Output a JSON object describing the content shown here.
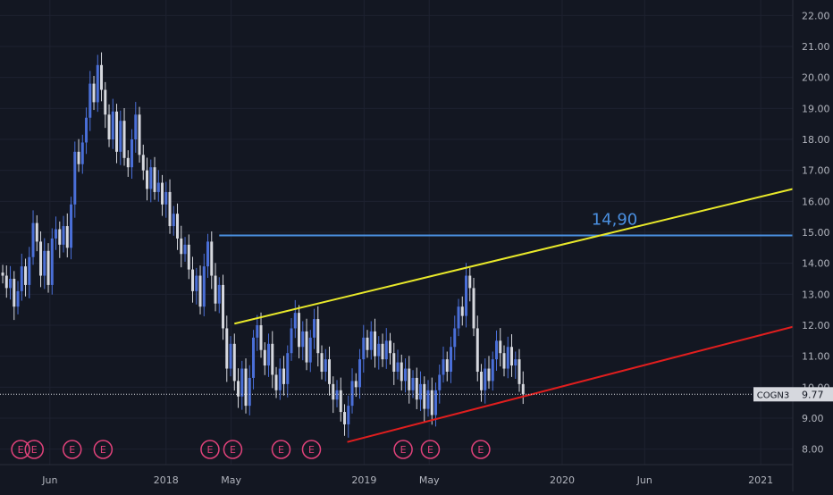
{
  "chart_data": {
    "type": "candlestick",
    "symbol": "COGN3",
    "last_price": "9.77",
    "price_label": "14,90",
    "y_ticks": [
      "22.00",
      "21.00",
      "20.00",
      "19.00",
      "18.00",
      "17.00",
      "16.00",
      "15.00",
      "14.00",
      "13.00",
      "12.00",
      "11.00",
      "10.00",
      "9.00",
      "8.00"
    ],
    "ylim": [
      7.5,
      22.5
    ],
    "x_ticks": [
      {
        "label": "Jun",
        "date": "2017-06-01"
      },
      {
        "label": "2018",
        "date": "2018-01-01"
      },
      {
        "label": "May",
        "date": "2018-05-01"
      },
      {
        "label": "2019",
        "date": "2019-01-01"
      },
      {
        "label": "May",
        "date": "2019-05-01"
      },
      {
        "label": "2020",
        "date": "2020-01-01"
      },
      {
        "label": "Jun",
        "date": "2020-06-01"
      },
      {
        "label": "2021",
        "date": "2021-01-01"
      }
    ],
    "xlim": [
      "2017-03-01",
      "2021-03-01"
    ],
    "candles": [
      [
        "2017-03-06",
        13.7,
        13.6
      ],
      [
        "2017-03-13",
        13.6,
        13.2
      ],
      [
        "2017-03-20",
        13.2,
        13.5
      ],
      [
        "2017-03-27",
        13.5,
        12.6
      ],
      [
        "2017-04-03",
        12.6,
        13.1
      ],
      [
        "2017-04-10",
        13.1,
        13.9
      ],
      [
        "2017-04-17",
        13.9,
        13.3
      ],
      [
        "2017-04-24",
        13.3,
        14.2
      ],
      [
        "2017-05-01",
        14.2,
        15.3
      ],
      [
        "2017-05-08",
        15.3,
        14.7
      ],
      [
        "2017-05-15",
        14.7,
        13.6
      ],
      [
        "2017-05-22",
        13.6,
        14.4
      ],
      [
        "2017-05-29",
        14.4,
        13.3
      ],
      [
        "2017-06-05",
        13.3,
        14.8
      ],
      [
        "2017-06-12",
        14.8,
        15.1
      ],
      [
        "2017-06-19",
        15.1,
        14.6
      ],
      [
        "2017-06-26",
        14.6,
        15.2
      ],
      [
        "2017-07-03",
        15.2,
        14.5
      ],
      [
        "2017-07-10",
        14.5,
        15.9
      ],
      [
        "2017-07-17",
        15.9,
        17.6
      ],
      [
        "2017-07-24",
        17.6,
        17.2
      ],
      [
        "2017-07-31",
        17.2,
        17.9
      ],
      [
        "2017-08-07",
        17.9,
        18.7
      ],
      [
        "2017-08-14",
        18.7,
        19.8
      ],
      [
        "2017-08-21",
        19.8,
        19.2
      ],
      [
        "2017-08-28",
        19.2,
        20.4
      ],
      [
        "2017-09-04",
        20.4,
        19.6
      ],
      [
        "2017-09-11",
        19.6,
        18.8
      ],
      [
        "2017-09-18",
        18.8,
        18.0
      ],
      [
        "2017-09-25",
        18.0,
        18.9
      ],
      [
        "2017-10-02",
        18.9,
        17.6
      ],
      [
        "2017-10-09",
        17.6,
        18.6
      ],
      [
        "2017-10-16",
        18.6,
        17.4
      ],
      [
        "2017-10-23",
        17.4,
        17.1
      ],
      [
        "2017-10-30",
        17.1,
        18.0
      ],
      [
        "2017-11-06",
        18.0,
        18.8
      ],
      [
        "2017-11-13",
        18.8,
        17.5
      ],
      [
        "2017-11-20",
        17.5,
        17.0
      ],
      [
        "2017-11-27",
        17.0,
        16.4
      ],
      [
        "2017-12-04",
        16.4,
        17.1
      ],
      [
        "2017-12-11",
        17.1,
        16.3
      ],
      [
        "2017-12-18",
        16.3,
        16.6
      ],
      [
        "2017-12-25",
        16.6,
        15.9
      ],
      [
        "2018-01-01",
        15.9,
        16.3
      ],
      [
        "2018-01-08",
        16.3,
        15.2
      ],
      [
        "2018-01-15",
        15.2,
        15.6
      ],
      [
        "2018-01-22",
        15.6,
        14.8
      ],
      [
        "2018-01-29",
        14.8,
        14.3
      ],
      [
        "2018-02-05",
        14.3,
        14.6
      ],
      [
        "2018-02-12",
        14.6,
        13.8
      ],
      [
        "2018-02-19",
        13.8,
        13.1
      ],
      [
        "2018-02-26",
        13.1,
        13.6
      ],
      [
        "2018-03-05",
        13.6,
        12.6
      ],
      [
        "2018-03-12",
        12.6,
        13.9
      ],
      [
        "2018-03-19",
        13.9,
        14.7
      ],
      [
        "2018-03-26",
        14.7,
        13.6
      ],
      [
        "2018-04-02",
        13.6,
        12.7
      ],
      [
        "2018-04-09",
        12.7,
        13.3
      ],
      [
        "2018-04-16",
        13.3,
        11.9
      ],
      [
        "2018-04-23",
        11.9,
        10.6
      ],
      [
        "2018-04-30",
        10.6,
        11.4
      ],
      [
        "2018-05-07",
        11.4,
        10.2
      ],
      [
        "2018-05-14",
        10.2,
        9.7
      ],
      [
        "2018-05-21",
        9.7,
        10.6
      ],
      [
        "2018-05-28",
        10.6,
        9.4
      ],
      [
        "2018-06-04",
        9.4,
        10.3
      ],
      [
        "2018-06-11",
        10.3,
        11.6
      ],
      [
        "2018-06-18",
        11.6,
        12.0
      ],
      [
        "2018-06-25",
        12.0,
        11.2
      ],
      [
        "2018-07-02",
        11.2,
        10.7
      ],
      [
        "2018-07-09",
        10.7,
        11.4
      ],
      [
        "2018-07-16",
        11.4,
        10.4
      ],
      [
        "2018-07-23",
        10.4,
        9.9
      ],
      [
        "2018-07-30",
        9.9,
        10.6
      ],
      [
        "2018-08-06",
        10.6,
        10.1
      ],
      [
        "2018-08-13",
        10.1,
        11.1
      ],
      [
        "2018-08-20",
        11.1,
        11.9
      ],
      [
        "2018-08-27",
        11.9,
        12.4
      ],
      [
        "2018-09-03",
        12.4,
        11.3
      ],
      [
        "2018-09-10",
        11.3,
        11.8
      ],
      [
        "2018-09-17",
        11.8,
        10.8
      ],
      [
        "2018-09-24",
        10.8,
        11.6
      ],
      [
        "2018-10-01",
        11.6,
        12.2
      ],
      [
        "2018-10-08",
        12.2,
        11.1
      ],
      [
        "2018-10-15",
        11.1,
        10.5
      ],
      [
        "2018-10-22",
        10.5,
        10.9
      ],
      [
        "2018-10-29",
        10.9,
        10.1
      ],
      [
        "2018-11-05",
        10.1,
        9.6
      ],
      [
        "2018-11-12",
        9.6,
        9.9
      ],
      [
        "2018-11-19",
        9.9,
        9.2
      ],
      [
        "2018-11-26",
        9.2,
        8.8
      ],
      [
        "2018-12-03",
        8.8,
        9.4
      ],
      [
        "2018-12-10",
        9.4,
        10.2
      ],
      [
        "2018-12-17",
        10.2,
        10.0
      ],
      [
        "2018-12-24",
        10.0,
        10.9
      ],
      [
        "2018-12-31",
        10.9,
        11.6
      ],
      [
        "2019-01-07",
        11.6,
        11.2
      ],
      [
        "2019-01-14",
        11.2,
        11.8
      ],
      [
        "2019-01-21",
        11.8,
        11.0
      ],
      [
        "2019-01-28",
        11.0,
        11.4
      ],
      [
        "2019-02-04",
        11.4,
        10.9
      ],
      [
        "2019-02-11",
        10.9,
        11.5
      ],
      [
        "2019-02-18",
        11.5,
        11.1
      ],
      [
        "2019-02-25",
        11.1,
        10.5
      ],
      [
        "2019-03-04",
        10.5,
        10.8
      ],
      [
        "2019-03-11",
        10.8,
        10.2
      ],
      [
        "2019-03-18",
        10.2,
        10.6
      ],
      [
        "2019-03-25",
        10.6,
        9.9
      ],
      [
        "2019-04-01",
        9.9,
        10.3
      ],
      [
        "2019-04-08",
        10.3,
        9.6
      ],
      [
        "2019-04-15",
        9.6,
        10.1
      ],
      [
        "2019-04-22",
        10.1,
        9.3
      ],
      [
        "2019-04-29",
        9.3,
        9.9
      ],
      [
        "2019-05-06",
        9.9,
        9.1
      ],
      [
        "2019-05-13",
        9.1,
        9.9
      ],
      [
        "2019-05-20",
        9.9,
        10.4
      ],
      [
        "2019-05-27",
        10.4,
        10.9
      ],
      [
        "2019-06-03",
        10.9,
        10.5
      ],
      [
        "2019-06-10",
        10.5,
        11.3
      ],
      [
        "2019-06-17",
        11.3,
        11.9
      ],
      [
        "2019-06-24",
        11.9,
        12.6
      ],
      [
        "2019-07-01",
        12.6,
        12.3
      ],
      [
        "2019-07-08",
        12.3,
        13.6
      ],
      [
        "2019-07-15",
        13.6,
        13.2
      ],
      [
        "2019-07-22",
        13.2,
        11.9
      ],
      [
        "2019-07-29",
        11.9,
        10.5
      ],
      [
        "2019-08-05",
        10.5,
        9.9
      ],
      [
        "2019-08-12",
        9.9,
        10.6
      ],
      [
        "2019-08-19",
        10.6,
        10.2
      ],
      [
        "2019-08-26",
        10.2,
        10.9
      ],
      [
        "2019-09-02",
        10.9,
        11.5
      ],
      [
        "2019-09-09",
        11.5,
        11.1
      ],
      [
        "2019-09-16",
        11.1,
        10.6
      ],
      [
        "2019-09-23",
        10.6,
        11.3
      ],
      [
        "2019-09-30",
        11.3,
        10.7
      ],
      [
        "2019-10-07",
        10.7,
        10.9
      ],
      [
        "2019-10-14",
        10.9,
        10.1
      ],
      [
        "2019-10-21",
        10.1,
        9.77
      ]
    ],
    "trendlines": [
      {
        "name": "resistance-blue",
        "color": "#4a8fe0",
        "points": [
          [
            "2018-04-09",
            14.9
          ],
          [
            "2021-03-01",
            14.9
          ]
        ]
      },
      {
        "name": "yellow-trend",
        "color": "#e8e82a",
        "points": [
          [
            "2018-05-07",
            12.05
          ],
          [
            "2021-03-01",
            16.4
          ]
        ]
      },
      {
        "name": "red-support",
        "color": "#e01e1e",
        "points": [
          [
            "2018-12-01",
            8.23
          ],
          [
            "2021-03-01",
            11.95
          ]
        ]
      }
    ],
    "earnings_markers": [
      "2017-04-08",
      "2017-05-03",
      "2017-07-12",
      "2017-09-07",
      "2018-03-23",
      "2018-05-04",
      "2018-08-01",
      "2018-09-26",
      "2019-03-14",
      "2019-05-03",
      "2019-08-04"
    ],
    "earnings_label": "E",
    "colors": {
      "background": "#131722",
      "up": "#4a6fd8",
      "down": "#d6d8de",
      "grid": "#1e2230",
      "axis_text": "#b2b5be"
    }
  }
}
